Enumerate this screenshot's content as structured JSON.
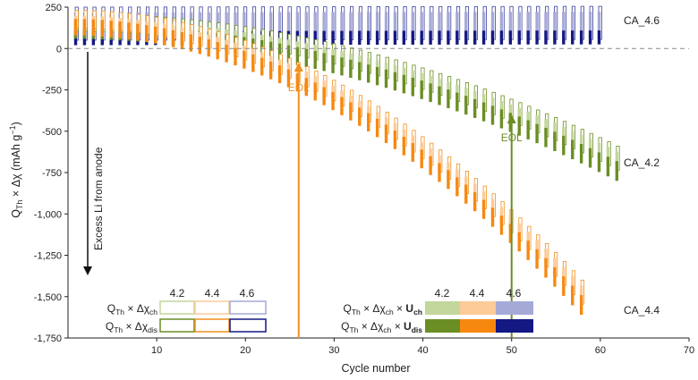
{
  "chart_data": {
    "type": "bar",
    "xlabel": "Cycle number",
    "ylabel_parts": {
      "q": "Q",
      "q_sub": "Th",
      "rest": " × Δχ (mAh g",
      "sup": "−1",
      "close": ")"
    },
    "xlim": [
      0,
      70
    ],
    "ylim": [
      -1750,
      250
    ],
    "xticks": [
      "10",
      "20",
      "30",
      "40",
      "50",
      "60",
      "70"
    ],
    "yticks": [
      "250",
      "0",
      "-250",
      "-500",
      "-750",
      "-1,000",
      "-1,250",
      "-1,500",
      "-1,750"
    ],
    "ytick_values": [
      250,
      0,
      -250,
      -500,
      -750,
      -1000,
      -1250,
      -1500,
      -1750
    ],
    "xtick_values": [
      10,
      20,
      30,
      40,
      50,
      60,
      70
    ],
    "colors": {
      "v42_light": "#c3d69b",
      "v42_dark": "#6a8e23",
      "v44_light": "#fccb97",
      "v44_dark": "#f7880f",
      "v46_light": "#a5a9d6",
      "v46_dark": "#131882",
      "outline42": "#6a8e23",
      "outline44": "#f0901e",
      "outline46": "#3a3f9c"
    },
    "series": [
      {
        "name": "CA_4.6",
        "cycles_end": 60,
        "start": 245,
        "end": 250,
        "shape": "flat"
      },
      {
        "name": "CA_4.2",
        "cycles_end": 62,
        "start": 200,
        "end": -600,
        "shape": "quadratic"
      },
      {
        "name": "CA_4.4",
        "cycles_end": 58,
        "start": 220,
        "end": -1410,
        "shape": "quadratic"
      }
    ],
    "curve_labels": [
      "CA_4.6",
      "CA_4.2",
      "CA_4.4"
    ],
    "annotations": {
      "excess_li": "Excess Li from anode",
      "eol_44": {
        "text": "EOL",
        "cycle": 26
      },
      "eol_42": {
        "text": "EOL",
        "cycle": 50
      }
    },
    "legend_left": {
      "headers": [
        "4.2",
        "4.4",
        "4.6"
      ],
      "row1": {
        "q": "Q",
        "sub": "Th",
        "mid": " × Δχ",
        "sub2": "ch"
      },
      "row2": {
        "q": "Q",
        "sub": "Th",
        "mid": " × Δχ",
        "sub2": "dis"
      }
    },
    "legend_right": {
      "headers": [
        "4.2",
        "4.4",
        "4.6"
      ],
      "row1": {
        "q": "Q",
        "sub": "Th",
        "mid": " × Δχ",
        "sub2": "ch",
        "times": " × ",
        "u": "U",
        "usub": "ch"
      },
      "row2": {
        "q": "Q",
        "sub": "Th",
        "mid": " × Δχ",
        "sub2": "ch",
        "times": " × ",
        "u": "U",
        "usub": "dis"
      }
    }
  }
}
